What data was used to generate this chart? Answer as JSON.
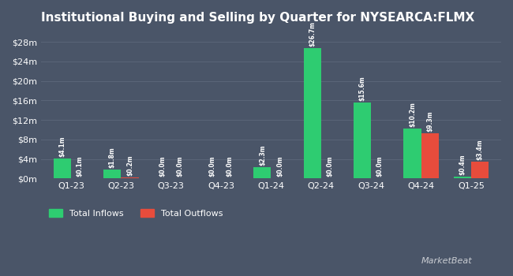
{
  "title": "Institutional Buying and Selling by Quarter for NYSEARCA:FLMX",
  "quarters": [
    "Q1-23",
    "Q2-23",
    "Q3-23",
    "Q4-23",
    "Q1-24",
    "Q2-24",
    "Q3-24",
    "Q4-24",
    "Q1-25"
  ],
  "inflows": [
    4.1,
    1.8,
    0.0,
    0.0,
    2.3,
    26.7,
    15.6,
    10.2,
    0.4
  ],
  "outflows": [
    0.1,
    0.2,
    0.0,
    0.0,
    0.0,
    0.0,
    0.0,
    9.3,
    3.4
  ],
  "inflow_labels": [
    "$4.1m",
    "$1.8m",
    "$0.0m",
    "$0.0m",
    "$2.3m",
    "$26.7m",
    "$15.6m",
    "$10.2m",
    "$0.4m"
  ],
  "outflow_labels": [
    "$0.1m",
    "$0.2m",
    "$0.0m",
    "$0.0m",
    "$0.0m",
    "$0.0m",
    "$0.0m",
    "$9.3m",
    "$3.4m"
  ],
  "inflow_color": "#2ecc71",
  "outflow_color": "#e74c3c",
  "background_color": "#4a5568",
  "plot_bg_color": "#4a5568",
  "text_color": "#ffffff",
  "grid_color": "#5a6578",
  "ylim": [
    0,
    30
  ],
  "yticks": [
    0,
    4,
    8,
    12,
    16,
    20,
    24,
    28
  ],
  "ytick_labels": [
    "$0m",
    "$4m",
    "$8m",
    "$12m",
    "$16m",
    "$20m",
    "$24m",
    "$28m"
  ],
  "bar_width": 0.35,
  "legend_inflow": "Total Inflows",
  "legend_outflow": "Total Outflows",
  "watermark": "MarketBeat"
}
